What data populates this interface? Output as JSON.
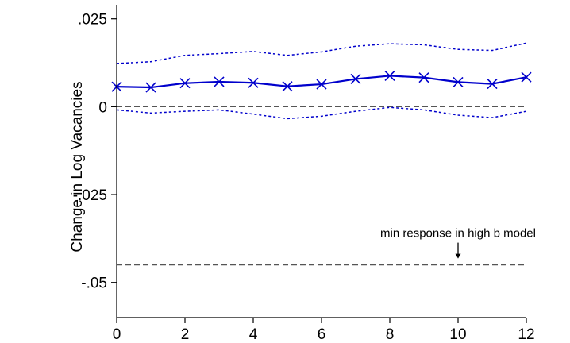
{
  "chart_data": {
    "type": "line",
    "title": "",
    "xlabel": "",
    "ylabel": "Change in Log Vacancies",
    "xlim": [
      0,
      12
    ],
    "ylim": [
      -0.06,
      0.029
    ],
    "x_ticks": [
      0,
      2,
      4,
      6,
      8,
      10,
      12
    ],
    "x_tick_labels": [
      "0",
      "2",
      "4",
      "6",
      "8",
      "10",
      "12"
    ],
    "y_ticks": [
      0.025,
      0,
      -0.025,
      -0.05
    ],
    "y_tick_labels": [
      ".025",
      "0",
      "-.025",
      "-.05"
    ],
    "grid": false,
    "legend": "none",
    "x": [
      0,
      1,
      2,
      3,
      4,
      5,
      6,
      7,
      8,
      9,
      10,
      11,
      12
    ],
    "series": [
      {
        "values": [
          0.0057,
          0.0055,
          0.0067,
          0.0071,
          0.0068,
          0.0058,
          0.0064,
          0.0079,
          0.0088,
          0.0083,
          0.007,
          0.0065,
          0.0084
        ],
        "color": "#0000cc",
        "style": "solid",
        "marker": "x"
      },
      {
        "values": [
          0.0123,
          0.0128,
          0.0146,
          0.0151,
          0.0157,
          0.0146,
          0.0156,
          0.0172,
          0.0179,
          0.0176,
          0.0163,
          0.016,
          0.0181
        ],
        "color": "#0000cc",
        "style": "dotted",
        "marker": "none"
      },
      {
        "values": [
          -0.0009,
          -0.0018,
          -0.0013,
          -0.0009,
          -0.0021,
          -0.0034,
          -0.0027,
          -0.0013,
          -0.0002,
          -0.0009,
          -0.0024,
          -0.0031,
          -0.0013
        ],
        "color": "#0000cc",
        "style": "dotted",
        "marker": "none"
      }
    ],
    "reference_lines": [
      {
        "y": 0,
        "style": "dashed",
        "color": "#555555"
      },
      {
        "y": -0.045,
        "style": "dashed",
        "color": "#555555"
      }
    ],
    "annotations": [
      {
        "text": "min response in high b model",
        "x": 10,
        "y": -0.045,
        "arrow": "down"
      }
    ]
  }
}
